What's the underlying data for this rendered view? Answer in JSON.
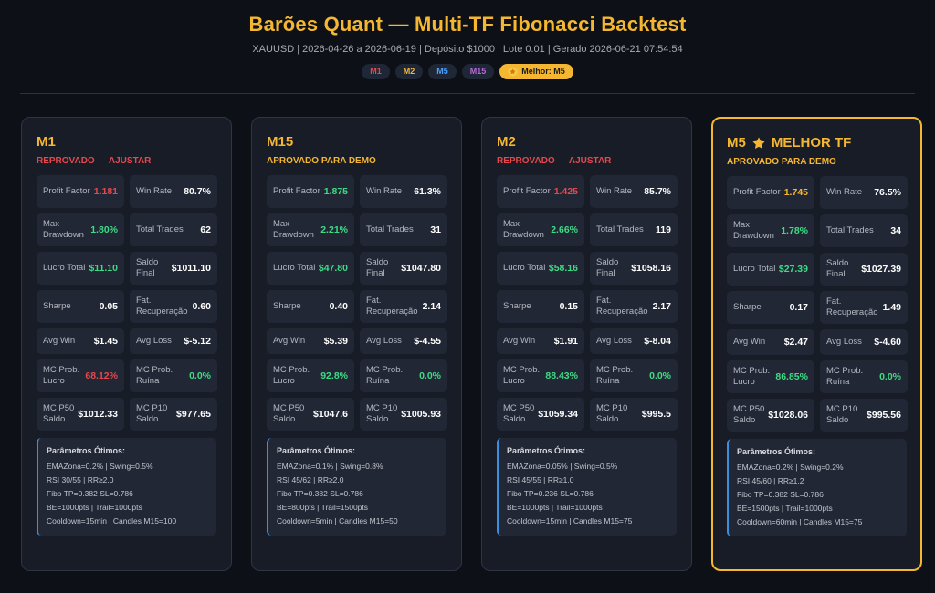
{
  "header": {
    "title": "Barões Quant — Multi-TF Fibonacci Backtest",
    "subtitle": "XAUUSD | 2026-04-26 a 2026-06-19 | Depósito $1000 | Lote 0.01 | Gerado 2026-06-21 07:54:54",
    "badges": [
      {
        "label": "M1",
        "color": "#e5484d"
      },
      {
        "label": "M2",
        "color": "#f5b731"
      },
      {
        "label": "M5",
        "color": "#4aa3ff"
      },
      {
        "label": "M15",
        "color": "#b36bd6"
      }
    ],
    "best_badge": "Melhor: M5"
  },
  "colors": {
    "gold": "#f5b731",
    "red": "#e5484d",
    "green": "#3ddc84",
    "white": "#ffffff"
  },
  "cards": [
    {
      "title": "M1",
      "title_suffix": "",
      "best": false,
      "status": "REPROVADO — AJUSTAR",
      "status_color": "#e5484d",
      "metrics": [
        {
          "label": "Profit Factor",
          "value": "1.181",
          "color": "#e5484d"
        },
        {
          "label": "Win Rate",
          "value": "80.7%",
          "color": "#ffffff"
        },
        {
          "label": "Max Drawdown",
          "value": "1.80%",
          "color": "#3ddc84"
        },
        {
          "label": "Total Trades",
          "value": "62",
          "color": "#ffffff"
        },
        {
          "label": "Lucro Total",
          "value": "$11.10",
          "color": "#3ddc84"
        },
        {
          "label": "Saldo Final",
          "value": "$1011.10",
          "color": "#ffffff"
        },
        {
          "label": "Sharpe",
          "value": "0.05",
          "color": "#ffffff"
        },
        {
          "label": "Fat. Recuperação",
          "value": "0.60",
          "color": "#ffffff"
        },
        {
          "label": "Avg Win",
          "value": "$1.45",
          "color": "#ffffff"
        },
        {
          "label": "Avg Loss",
          "value": "$-5.12",
          "color": "#ffffff"
        },
        {
          "label": "MC Prob. Lucro",
          "value": "68.12%",
          "color": "#e5484d"
        },
        {
          "label": "MC Prob. Ruína",
          "value": "0.0%",
          "color": "#3ddc84"
        },
        {
          "label": "MC P50 Saldo",
          "value": "$1012.33",
          "color": "#ffffff"
        },
        {
          "label": "MC P10 Saldo",
          "value": "$977.65",
          "color": "#ffffff"
        }
      ],
      "params_title": "Parâmetros Ótimos:",
      "params": [
        "EMAZona=0.2% | Swing=0.5%",
        "RSI 30/55 | RR≥2.0",
        "Fibo TP=0.382 SL=0.786",
        "BE=1000pts | Trail=1000pts",
        "Cooldown=15min | Candles M15=100"
      ]
    },
    {
      "title": "M15",
      "title_suffix": "",
      "best": false,
      "status": "APROVADO PARA DEMO",
      "status_color": "#f5b731",
      "metrics": [
        {
          "label": "Profit Factor",
          "value": "1.875",
          "color": "#3ddc84"
        },
        {
          "label": "Win Rate",
          "value": "61.3%",
          "color": "#ffffff"
        },
        {
          "label": "Max Drawdown",
          "value": "2.21%",
          "color": "#3ddc84"
        },
        {
          "label": "Total Trades",
          "value": "31",
          "color": "#ffffff"
        },
        {
          "label": "Lucro Total",
          "value": "$47.80",
          "color": "#3ddc84"
        },
        {
          "label": "Saldo Final",
          "value": "$1047.80",
          "color": "#ffffff"
        },
        {
          "label": "Sharpe",
          "value": "0.40",
          "color": "#ffffff"
        },
        {
          "label": "Fat. Recuperação",
          "value": "2.14",
          "color": "#ffffff"
        },
        {
          "label": "Avg Win",
          "value": "$5.39",
          "color": "#ffffff"
        },
        {
          "label": "Avg Loss",
          "value": "$-4.55",
          "color": "#ffffff"
        },
        {
          "label": "MC Prob. Lucro",
          "value": "92.8%",
          "color": "#3ddc84"
        },
        {
          "label": "MC Prob. Ruína",
          "value": "0.0%",
          "color": "#3ddc84"
        },
        {
          "label": "MC P50 Saldo",
          "value": "$1047.6",
          "color": "#ffffff"
        },
        {
          "label": "MC P10 Saldo",
          "value": "$1005.93",
          "color": "#ffffff"
        }
      ],
      "params_title": "Parâmetros Ótimos:",
      "params": [
        "EMAZona=0.1% | Swing=0.8%",
        "RSI 45/62 | RR≥2.0",
        "Fibo TP=0.382 SL=0.786",
        "BE=800pts | Trail=1500pts",
        "Cooldown=5min | Candles M15=50"
      ]
    },
    {
      "title": "M2",
      "title_suffix": "",
      "best": false,
      "status": "REPROVADO — AJUSTAR",
      "status_color": "#e5484d",
      "metrics": [
        {
          "label": "Profit Factor",
          "value": "1.425",
          "color": "#e5484d"
        },
        {
          "label": "Win Rate",
          "value": "85.7%",
          "color": "#ffffff"
        },
        {
          "label": "Max Drawdown",
          "value": "2.66%",
          "color": "#3ddc84"
        },
        {
          "label": "Total Trades",
          "value": "119",
          "color": "#ffffff"
        },
        {
          "label": "Lucro Total",
          "value": "$58.16",
          "color": "#3ddc84"
        },
        {
          "label": "Saldo Final",
          "value": "$1058.16",
          "color": "#ffffff"
        },
        {
          "label": "Sharpe",
          "value": "0.15",
          "color": "#ffffff"
        },
        {
          "label": "Fat. Recuperação",
          "value": "2.17",
          "color": "#ffffff"
        },
        {
          "label": "Avg Win",
          "value": "$1.91",
          "color": "#ffffff"
        },
        {
          "label": "Avg Loss",
          "value": "$-8.04",
          "color": "#ffffff"
        },
        {
          "label": "MC Prob. Lucro",
          "value": "88.43%",
          "color": "#3ddc84"
        },
        {
          "label": "MC Prob. Ruína",
          "value": "0.0%",
          "color": "#3ddc84"
        },
        {
          "label": "MC P50 Saldo",
          "value": "$1059.34",
          "color": "#ffffff"
        },
        {
          "label": "MC P10 Saldo",
          "value": "$995.5",
          "color": "#ffffff"
        }
      ],
      "params_title": "Parâmetros Ótimos:",
      "params": [
        "EMAZona=0.05% | Swing=0.5%",
        "RSI 45/55 | RR≥1.0",
        "Fibo TP=0.236 SL=0.786",
        "BE=1000pts | Trail=1000pts",
        "Cooldown=15min | Candles M15=75"
      ]
    },
    {
      "title": "M5",
      "title_suffix": "MELHOR TF",
      "best": true,
      "status": "APROVADO PARA DEMO",
      "status_color": "#f5b731",
      "metrics": [
        {
          "label": "Profit Factor",
          "value": "1.745",
          "color": "#f5b731"
        },
        {
          "label": "Win Rate",
          "value": "76.5%",
          "color": "#ffffff"
        },
        {
          "label": "Max Drawdown",
          "value": "1.78%",
          "color": "#3ddc84"
        },
        {
          "label": "Total Trades",
          "value": "34",
          "color": "#ffffff"
        },
        {
          "label": "Lucro Total",
          "value": "$27.39",
          "color": "#3ddc84"
        },
        {
          "label": "Saldo Final",
          "value": "$1027.39",
          "color": "#ffffff"
        },
        {
          "label": "Sharpe",
          "value": "0.17",
          "color": "#ffffff"
        },
        {
          "label": "Fat. Recuperação",
          "value": "1.49",
          "color": "#ffffff"
        },
        {
          "label": "Avg Win",
          "value": "$2.47",
          "color": "#ffffff"
        },
        {
          "label": "Avg Loss",
          "value": "$-4.60",
          "color": "#ffffff"
        },
        {
          "label": "MC Prob. Lucro",
          "value": "86.85%",
          "color": "#3ddc84"
        },
        {
          "label": "MC Prob. Ruína",
          "value": "0.0%",
          "color": "#3ddc84"
        },
        {
          "label": "MC P50 Saldo",
          "value": "$1028.06",
          "color": "#ffffff"
        },
        {
          "label": "MC P10 Saldo",
          "value": "$995.56",
          "color": "#ffffff"
        }
      ],
      "params_title": "Parâmetros Ótimos:",
      "params": [
        "EMAZona=0.2% | Swing=0.2%",
        "RSI 45/60 | RR≥1.2",
        "Fibo TP=0.382 SL=0.786",
        "BE=1500pts | Trail=1000pts",
        "Cooldown=60min | Candles M15=75"
      ]
    }
  ]
}
